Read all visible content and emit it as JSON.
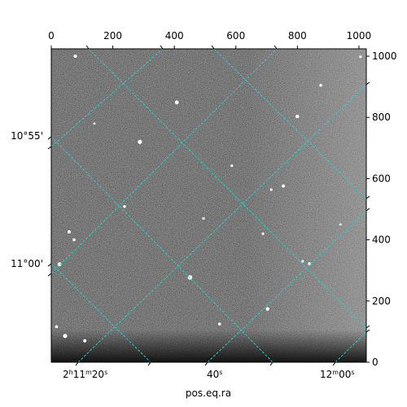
{
  "chart_data": {
    "type": "heatmap",
    "description_kind": "astronomical image with WCS coordinate grid overlay",
    "pixel_axes": {
      "top": {
        "range": [
          0,
          1024
        ],
        "ticks": [
          0,
          200,
          400,
          600,
          800,
          1000
        ]
      },
      "right": {
        "range": [
          0,
          1024
        ],
        "ticks": [
          0,
          200,
          400,
          600,
          800,
          1000
        ]
      }
    },
    "world_axes": {
      "bottom": {
        "label": "pos.eq.ra",
        "ticks": [
          {
            "h": "2",
            "m": "11",
            "s": "20",
            "text": "2h11m20s"
          },
          {
            "s": "40",
            "text": "40s"
          },
          {
            "m": "12",
            "s": "00",
            "text": "12m00s"
          }
        ]
      },
      "left": {
        "ticks": [
          "10°55'",
          "11°00'"
        ]
      }
    },
    "grid": true,
    "colors": {
      "grid": "#22d3d3",
      "image_background": "#4a4a4a",
      "frame": "#000000"
    },
    "colormap": "gray",
    "stars": [
      {
        "x": 78,
        "y": 1000,
        "b": 2.0
      },
      {
        "x": 408,
        "y": 849,
        "b": 2.4
      },
      {
        "x": 800,
        "y": 803,
        "b": 2.2
      },
      {
        "x": 876,
        "y": 905,
        "b": 1.8
      },
      {
        "x": 288,
        "y": 720,
        "b": 2.6
      },
      {
        "x": 587,
        "y": 642,
        "b": 1.6
      },
      {
        "x": 754,
        "y": 576,
        "b": 2.0
      },
      {
        "x": 715,
        "y": 564,
        "b": 1.6
      },
      {
        "x": 238,
        "y": 509,
        "b": 1.8
      },
      {
        "x": 495,
        "y": 470,
        "b": 1.6
      },
      {
        "x": 688,
        "y": 420,
        "b": 1.6
      },
      {
        "x": 58,
        "y": 426,
        "b": 2.0
      },
      {
        "x": 74,
        "y": 400,
        "b": 1.8
      },
      {
        "x": 27,
        "y": 320,
        "b": 2.4
      },
      {
        "x": 451,
        "y": 277,
        "b": 2.8
      },
      {
        "x": 839,
        "y": 322,
        "b": 1.8
      },
      {
        "x": 817,
        "y": 330,
        "b": 1.6
      },
      {
        "x": 703,
        "y": 174,
        "b": 2.2
      },
      {
        "x": 547,
        "y": 125,
        "b": 1.8
      },
      {
        "x": 45,
        "y": 86,
        "b": 2.6
      },
      {
        "x": 109,
        "y": 70,
        "b": 2.0
      },
      {
        "x": 17,
        "y": 116,
        "b": 1.8
      },
      {
        "x": 1005,
        "y": 998,
        "b": 1.6
      },
      {
        "x": 940,
        "y": 450,
        "b": 1.4
      },
      {
        "x": 140,
        "y": 780,
        "b": 1.4
      }
    ]
  }
}
